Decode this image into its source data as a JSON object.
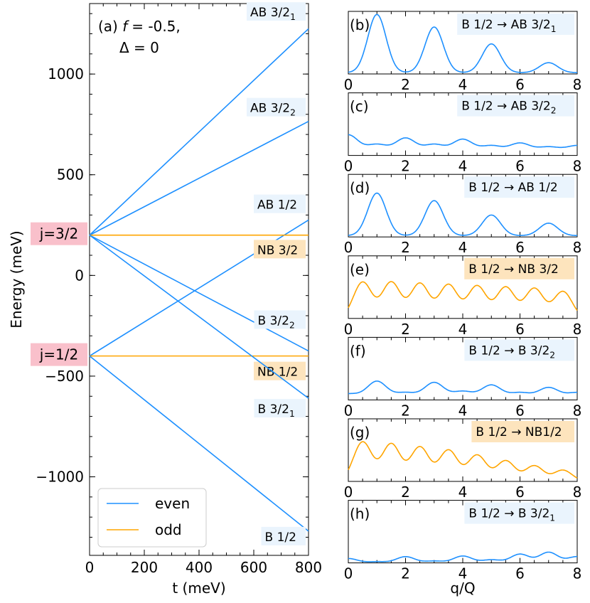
{
  "chart_data": [
    {
      "type": "line",
      "title": "(a) f = -0.5, Δ = 0",
      "title_parts": {
        "prefix": "(a) ",
        "f_symbol": "f",
        "f_value": "= -0.5,",
        "delta": "Δ = 0"
      },
      "xlabel": "t (meV)",
      "ylabel": "Energy (meV)",
      "xlim": [
        0,
        800
      ],
      "ylim": [
        -1390,
        1350
      ],
      "xticks": [
        0,
        200,
        400,
        600,
        800
      ],
      "xtick_labels": [
        "0",
        "200",
        "400",
        "600",
        "800"
      ],
      "yticks": [
        -1000,
        -500,
        0,
        500,
        1000
      ],
      "ytick_labels": [
        "−1000",
        "−500",
        "0",
        "500",
        "1000"
      ],
      "legend": {
        "placement": "lower-left",
        "entries": [
          {
            "name": "even",
            "color": "#1e90ff"
          },
          {
            "name": "odd",
            "color": "#ffa500"
          }
        ]
      },
      "level_labels": [
        {
          "text": "j=3/2",
          "energy": 200,
          "bg": "#f9c0cb"
        },
        {
          "text": "j=1/2",
          "energy": -400,
          "bg": "#f9c0cb"
        }
      ],
      "series": [
        {
          "name": "AB 3/2₁",
          "label": "AB 3/2",
          "sub": "1",
          "parity": "even",
          "x": [
            0,
            800
          ],
          "y": [
            200,
            1225
          ],
          "label_bg": "#eaf4fd",
          "label_y": 1300
        },
        {
          "name": "AB 3/2₂",
          "label": "AB 3/2",
          "sub": "2",
          "parity": "even",
          "x": [
            0,
            800
          ],
          "y": [
            200,
            765
          ],
          "label_bg": "#eaf4fd",
          "label_y": 825
        },
        {
          "name": "AB 1/2",
          "label": "AB 1/2",
          "sub": "",
          "parity": "even",
          "x": [
            0,
            800
          ],
          "y": [
            -400,
            275
          ],
          "label_bg": "#eaf4fd",
          "label_y": 345
        },
        {
          "name": "NB 3/2",
          "label": "NB 3/2",
          "sub": "",
          "parity": "odd",
          "x": [
            0,
            800
          ],
          "y": [
            200,
            200
          ],
          "label_bg": "#fde4bd",
          "label_y": 120
        },
        {
          "name": "B 3/2₂",
          "label": "B 3/2",
          "sub": "2",
          "parity": "even",
          "x": [
            0,
            800
          ],
          "y": [
            200,
            -375
          ],
          "label_bg": "#eaf4fd",
          "label_y": -230
        },
        {
          "name": "NB 1/2",
          "label": "NB 1/2",
          "sub": "",
          "parity": "odd",
          "x": [
            0,
            800
          ],
          "y": [
            -400,
            -400
          ],
          "label_bg": "#fde4bd",
          "label_y": -485
        },
        {
          "name": "B 3/2₁",
          "label": "B 3/2",
          "sub": "1",
          "parity": "even",
          "x": [
            0,
            800
          ],
          "y": [
            200,
            -610
          ],
          "label_bg": "#eaf4fd",
          "label_y": -670
        },
        {
          "name": "B 1/2",
          "label": "B 1/2",
          "sub": "",
          "parity": "even",
          "x": [
            0,
            800
          ],
          "y": [
            -400,
            -1270
          ],
          "label_bg": "#eaf4fd",
          "label_y": -1305
        }
      ]
    },
    {
      "type": "line",
      "panels_xlabel": "q/Q",
      "xlim": [
        0,
        8
      ],
      "xticks": [
        0,
        2,
        4,
        6,
        8
      ],
      "xtick_labels": [
        "0",
        "2",
        "4",
        "6",
        "8"
      ],
      "panels": [
        {
          "id": "b",
          "tag": "(b)",
          "label": "B 1/2 → AB 3/2",
          "sub": "1",
          "parity": "even",
          "color": "#1e90ff",
          "label_bg": "#eaf4fd",
          "peaks_x": [
            1,
            3,
            5,
            7
          ],
          "peaks_y": [
            0.95,
            0.75,
            0.48,
            0.18
          ],
          "floor": 0.02
        },
        {
          "id": "c",
          "tag": "(c)",
          "label": "B 1/2 → AB 3/2",
          "sub": "2",
          "parity": "even",
          "color": "#1e90ff",
          "label_bg": "#eaf4fd",
          "peaks_x": [
            0,
            1,
            2,
            3,
            4,
            5,
            6,
            7,
            8
          ],
          "peaks_y": [
            0.33,
            0.18,
            0.28,
            0.18,
            0.26,
            0.16,
            0.2,
            0.14,
            0.16
          ],
          "floor": 0.1
        },
        {
          "id": "d",
          "tag": "(d)",
          "label": "B 1/2 → AB 1/2",
          "sub": "",
          "parity": "even",
          "color": "#1e90ff",
          "label_bg": "#eaf4fd",
          "peaks_x": [
            1,
            3,
            5,
            7
          ],
          "peaks_y": [
            0.7,
            0.58,
            0.35,
            0.22
          ],
          "floor": 0.02
        },
        {
          "id": "e",
          "tag": "(e)",
          "label": "B 1/2 → NB 3/2",
          "sub": "",
          "parity": "odd",
          "color": "#ffa500",
          "label_bg": "#fde4bd",
          "peaks_x": [
            0.5,
            1.5,
            2.5,
            3.5,
            4.5,
            5.5,
            6.5,
            7.5
          ],
          "peaks_y": [
            0.58,
            0.58,
            0.56,
            0.54,
            0.52,
            0.5,
            0.48,
            0.43
          ],
          "floor": 0.0
        },
        {
          "id": "f",
          "tag": "(f)",
          "label": "B 1/2 → B 3/2",
          "sub": "2",
          "parity": "even",
          "color": "#1e90ff",
          "label_bg": "#eaf4fd",
          "peaks_x": [
            0,
            1,
            2,
            3,
            4,
            5,
            6,
            7,
            8
          ],
          "peaks_y": [
            0.1,
            0.3,
            0.12,
            0.28,
            0.14,
            0.24,
            0.12,
            0.2,
            0.12
          ],
          "floor": 0.07
        },
        {
          "id": "g",
          "tag": "(g)",
          "label": "B 1/2 → NB1/2",
          "sub": "",
          "parity": "odd",
          "color": "#ffa500",
          "label_bg": "#fde4bd",
          "peaks_x": [
            0.5,
            1.5,
            2.5,
            3.5,
            4.5,
            5.5,
            6.5,
            7.5
          ],
          "peaks_y": [
            0.63,
            0.6,
            0.55,
            0.5,
            0.42,
            0.33,
            0.25,
            0.18
          ],
          "floor": 0.0
        },
        {
          "id": "h",
          "tag": "(h)",
          "label": "B 1/2 → B 3/2",
          "sub": "1",
          "parity": "even",
          "color": "#1e90ff",
          "label_bg": "#eaf4fd",
          "peaks_x": [
            0,
            1,
            2,
            3,
            4,
            5,
            6,
            7,
            8
          ],
          "peaks_y": [
            0.07,
            0.02,
            0.1,
            0.03,
            0.11,
            0.05,
            0.14,
            0.17,
            0.1
          ],
          "floor": 0.0
        }
      ]
    }
  ]
}
